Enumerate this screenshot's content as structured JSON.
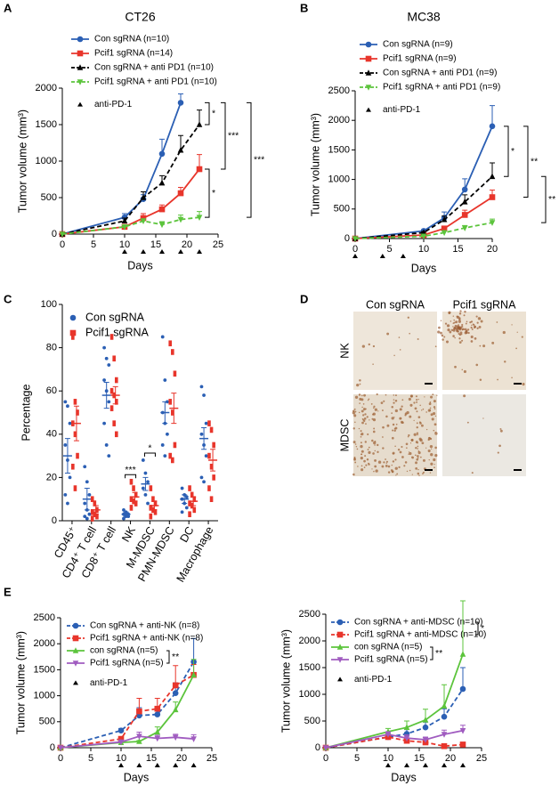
{
  "chart_data": [
    {
      "type": "line",
      "panel": "A",
      "title": "CT26",
      "x_label": "Days",
      "y_label": "Tumor volume (mm³)",
      "x": [
        0,
        10,
        13,
        16,
        19,
        22
      ],
      "xlim": [
        0,
        25
      ],
      "xticks": [
        0,
        5,
        10,
        15,
        20,
        25
      ],
      "ylim": [
        0,
        2000
      ],
      "yticks": [
        0,
        500,
        1000,
        1500,
        2000
      ],
      "series": [
        {
          "name": "Con sgRNA (n=10)",
          "color": "#2b5fb4",
          "marker": "circle",
          "dashed": false,
          "values": [
            0,
            230,
            480,
            1100,
            1800,
            null
          ],
          "errors": [
            0,
            50,
            60,
            200,
            120,
            null
          ]
        },
        {
          "name": "Pcif1 sgRNA (n=14)",
          "color": "#e8352b",
          "marker": "square",
          "dashed": false,
          "values": [
            0,
            100,
            220,
            340,
            560,
            890
          ],
          "errors": [
            0,
            30,
            60,
            60,
            80,
            200
          ]
        },
        {
          "name": "Con sgRNA + anti PD1 (n=10)",
          "color": "#000000",
          "marker": "triangle",
          "dashed": true,
          "values": [
            0,
            180,
            500,
            700,
            1150,
            1500
          ],
          "errors": [
            0,
            40,
            80,
            100,
            200,
            200
          ]
        },
        {
          "name": "Pcif1 sgRNA + anti PD1 (n=10)",
          "color": "#5cc43c",
          "marker": "triangle-down",
          "dashed": true,
          "values": [
            0,
            100,
            180,
            130,
            200,
            230
          ],
          "errors": [
            0,
            20,
            30,
            40,
            60,
            80
          ]
        }
      ],
      "treatment_label": "anti-PD-1",
      "treatment_days": [
        10,
        13,
        16,
        19,
        22
      ],
      "annotations": [
        "*",
        "***",
        "*",
        "***"
      ]
    },
    {
      "type": "line",
      "panel": "B",
      "title": "MC38",
      "x_label": "Days",
      "y_label": "Tumor volume (mm³)",
      "x": [
        0,
        10,
        13,
        16,
        20
      ],
      "xlim": [
        0,
        20
      ],
      "xticks": [
        0,
        5,
        10,
        15,
        20
      ],
      "ylim": [
        0,
        2500
      ],
      "yticks": [
        0,
        500,
        1000,
        1500,
        2000,
        2500
      ],
      "series": [
        {
          "name": "Con sgRNA (n=9)",
          "color": "#2b5fb4",
          "marker": "circle",
          "dashed": false,
          "values": [
            0,
            130,
            350,
            830,
            1900
          ],
          "errors": [
            0,
            20,
            100,
            180,
            350
          ]
        },
        {
          "name": "Pcif1 sgRNA (n=9)",
          "color": "#e8352b",
          "marker": "square",
          "dashed": false,
          "values": [
            0,
            60,
            170,
            400,
            700
          ],
          "errors": [
            0,
            20,
            40,
            80,
            120
          ]
        },
        {
          "name": "Con sgRNA + anti PD1 (n=9)",
          "color": "#000000",
          "marker": "triangle",
          "dashed": true,
          "values": [
            0,
            100,
            320,
            620,
            1050
          ],
          "errors": [
            0,
            20,
            60,
            120,
            230
          ]
        },
        {
          "name": "Pcif1 sgRNA + anti PD1 (n=9)",
          "color": "#5cc43c",
          "marker": "triangle-down",
          "dashed": true,
          "values": [
            0,
            40,
            100,
            180,
            270
          ],
          "errors": [
            0,
            10,
            30,
            40,
            60
          ]
        }
      ],
      "treatment_label": "anti-PD-1",
      "treatment_days": [
        0,
        4,
        7
      ],
      "annotations": [
        "*",
        "**",
        "**"
      ]
    },
    {
      "type": "strip",
      "panel": "C",
      "y_label": "Percentage",
      "categories": [
        "CD45⁺",
        "CD4⁺ T cell",
        "CD8⁺ T cell",
        "NK",
        "M-MDSC",
        "PMN-MDSC",
        "DC",
        "Macrophage"
      ],
      "ylim": [
        0,
        100
      ],
      "yticks": [
        0,
        20,
        40,
        60,
        80,
        100
      ],
      "series": [
        {
          "name": "Con sgRNA",
          "color": "#2b5fb4",
          "means": [
            30,
            10,
            58,
            3,
            17,
            50,
            10,
            38
          ],
          "errors": [
            8,
            5,
            6,
            1,
            3,
            5,
            2,
            5
          ],
          "points": [
            [
              55,
              53,
              45,
              35,
              28,
              20,
              12,
              8
            ],
            [
              25,
              18,
              12,
              8,
              5,
              3,
              2,
              1
            ],
            [
              80,
              75,
              72,
              65,
              60,
              55,
              45,
              35,
              30
            ],
            [
              5,
              4,
              3,
              3,
              2,
              2,
              1
            ],
            [
              28,
              22,
              18,
              15,
              12,
              8
            ],
            [
              85,
              65,
              55,
              50,
              45,
              40,
              35,
              30
            ],
            [
              15,
              12,
              11,
              10,
              8,
              6,
              4
            ],
            [
              62,
              58,
              45,
              40,
              35,
              30,
              20,
              18
            ]
          ]
        },
        {
          "name": "Pcif1 sgRNA",
          "color": "#e8352b",
          "means": [
            45,
            5,
            58,
            11,
            7,
            52,
            9,
            28
          ],
          "errors": [
            8,
            2,
            4,
            2,
            2,
            7,
            2,
            5
          ],
          "points": [
            [
              85,
              55,
              50,
              45,
              40,
              30,
              25,
              15
            ],
            [
              10,
              8,
              5,
              4,
              3,
              2,
              1
            ],
            [
              85,
              75,
              65,
              60,
              58,
              55,
              52,
              45,
              40
            ],
            [
              18,
              15,
              12,
              10,
              9,
              8,
              6
            ],
            [
              15,
              10,
              8,
              6,
              5,
              4,
              2
            ],
            [
              82,
              78,
              68,
              55,
              50,
              35,
              30,
              28
            ],
            [
              15,
              12,
              10,
              8,
              7,
              5,
              3
            ],
            [
              45,
              42,
              35,
              30,
              25,
              20,
              15,
              10
            ]
          ]
        }
      ],
      "annotations": [
        "***",
        "*"
      ]
    },
    {
      "type": "line",
      "panel": "E",
      "x_label": "Days",
      "y_label": "Tumor volume (mm³)",
      "x": [
        0,
        10,
        13,
        16,
        19,
        22
      ],
      "xlim": [
        0,
        25
      ],
      "xticks": [
        0,
        5,
        10,
        15,
        20,
        25
      ],
      "ylim": [
        0,
        2500
      ],
      "yticks": [
        0,
        500,
        1000,
        1500,
        2000,
        2500
      ],
      "series": [
        {
          "name": "Con sgRNA + anti-NK (n=8)",
          "color": "#2b5fb4",
          "marker": "circle",
          "dashed": true,
          "values": [
            0,
            330,
            620,
            640,
            1050,
            1650
          ],
          "errors": [
            0,
            40,
            150,
            100,
            200,
            450
          ]
        },
        {
          "name": "Pcif1 sgRNA + anti-NK (n=8)",
          "color": "#e8352b",
          "marker": "square",
          "dashed": true,
          "values": [
            0,
            170,
            700,
            750,
            1200,
            1400
          ],
          "errors": [
            0,
            30,
            250,
            200,
            380,
            200
          ]
        },
        {
          "name": "con sgRNA (n=5)",
          "color": "#5cc43c",
          "marker": "triangle",
          "dashed": false,
          "values": [
            0,
            100,
            120,
            300,
            730,
            1400
          ],
          "errors": [
            0,
            10,
            20,
            100,
            150,
            300
          ]
        },
        {
          "name": "Pcif1 sgRNA (n=5)",
          "color": "#a05cc0",
          "marker": "triangle-down",
          "dashed": false,
          "values": [
            0,
            110,
            220,
            180,
            200,
            170
          ],
          "errors": [
            0,
            20,
            80,
            60,
            60,
            80
          ]
        }
      ],
      "treatment_label": "anti-PD-1",
      "treatment_days": [
        10,
        13,
        16,
        19,
        22
      ],
      "annotations": [
        "**"
      ]
    },
    {
      "type": "line",
      "x_label": "Days",
      "y_label": "Tumor volume (mm³)",
      "x": [
        0,
        10,
        13,
        16,
        19,
        22
      ],
      "xlim": [
        0,
        25
      ],
      "xticks": [
        0,
        5,
        10,
        15,
        20,
        25
      ],
      "ylim": [
        0,
        2500
      ],
      "yticks": [
        0,
        500,
        1000,
        1500,
        2000,
        2500
      ],
      "series": [
        {
          "name": "Con sgRNA + anti-MDSC (n=10)",
          "color": "#2b5fb4",
          "marker": "circle",
          "dashed": true,
          "values": [
            0,
            200,
            260,
            380,
            580,
            1100
          ],
          "errors": [
            0,
            50,
            80,
            100,
            150,
            400
          ]
        },
        {
          "name": "Pcif1 sgRNA + anti-MDSC (n=10)",
          "color": "#e8352b",
          "marker": "square",
          "dashed": true,
          "values": [
            0,
            200,
            130,
            100,
            30,
            60
          ],
          "errors": [
            0,
            40,
            40,
            30,
            20,
            20
          ]
        },
        {
          "name": "con sgRNA (n=5)",
          "color": "#5cc43c",
          "marker": "triangle",
          "dashed": false,
          "values": [
            0,
            300,
            380,
            520,
            780,
            1750
          ],
          "errors": [
            0,
            60,
            120,
            200,
            400,
            1000
          ]
        },
        {
          "name": "Pcif1 sgRNA (n=5)",
          "color": "#a05cc0",
          "marker": "triangle-down",
          "dashed": false,
          "values": [
            0,
            250,
            180,
            150,
            250,
            320
          ],
          "errors": [
            0,
            50,
            60,
            50,
            80,
            100
          ]
        }
      ],
      "treatment_label": "anti-PD-1",
      "treatment_days": [
        10,
        13,
        16,
        19,
        22
      ],
      "annotations": [
        "*",
        "**"
      ]
    }
  ],
  "panel_d": {
    "panel": "D",
    "columns": [
      "Con sgRNA",
      "Pcif1 sgRNA"
    ],
    "rows": [
      "NK",
      "MDSC"
    ]
  }
}
